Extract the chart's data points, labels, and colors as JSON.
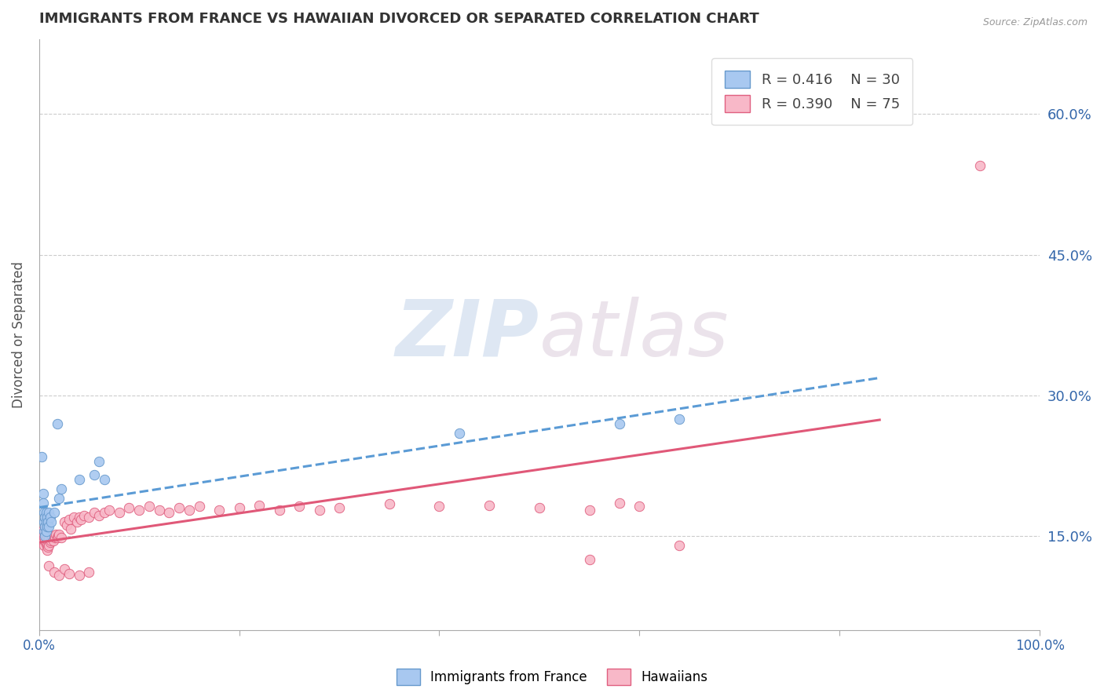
{
  "title": "IMMIGRANTS FROM FRANCE VS HAWAIIAN DIVORCED OR SEPARATED CORRELATION CHART",
  "source_text": "Source: ZipAtlas.com",
  "ylabel": "Divorced or Separated",
  "right_yticks": [
    "15.0%",
    "30.0%",
    "45.0%",
    "60.0%"
  ],
  "right_ytick_vals": [
    0.15,
    0.3,
    0.45,
    0.6
  ],
  "legend_blue_r": "R = 0.416",
  "legend_blue_n": "N = 30",
  "legend_pink_r": "R = 0.390",
  "legend_pink_n": "N = 75",
  "watermark_zip": "ZIP",
  "watermark_atlas": "atlas",
  "blue_color": "#A8C8F0",
  "pink_color": "#F8B8C8",
  "blue_edge_color": "#6699CC",
  "pink_edge_color": "#E06080",
  "blue_line_color": "#5B9BD5",
  "pink_line_color": "#E05878",
  "blue_scatter": [
    [
      0.003,
      0.235
    ],
    [
      0.004,
      0.195
    ],
    [
      0.004,
      0.185
    ],
    [
      0.005,
      0.175
    ],
    [
      0.005,
      0.165
    ],
    [
      0.005,
      0.155
    ],
    [
      0.006,
      0.17
    ],
    [
      0.006,
      0.16
    ],
    [
      0.006,
      0.15
    ],
    [
      0.007,
      0.175
    ],
    [
      0.007,
      0.165
    ],
    [
      0.007,
      0.155
    ],
    [
      0.008,
      0.17
    ],
    [
      0.008,
      0.16
    ],
    [
      0.009,
      0.165
    ],
    [
      0.01,
      0.175
    ],
    [
      0.01,
      0.16
    ],
    [
      0.011,
      0.17
    ],
    [
      0.012,
      0.165
    ],
    [
      0.015,
      0.175
    ],
    [
      0.018,
      0.27
    ],
    [
      0.02,
      0.19
    ],
    [
      0.022,
      0.2
    ],
    [
      0.04,
      0.21
    ],
    [
      0.055,
      0.215
    ],
    [
      0.06,
      0.23
    ],
    [
      0.065,
      0.21
    ],
    [
      0.42,
      0.26
    ],
    [
      0.58,
      0.27
    ],
    [
      0.64,
      0.275
    ]
  ],
  "pink_scatter": [
    [
      0.003,
      0.155
    ],
    [
      0.004,
      0.15
    ],
    [
      0.004,
      0.145
    ],
    [
      0.005,
      0.155
    ],
    [
      0.005,
      0.148
    ],
    [
      0.005,
      0.14
    ],
    [
      0.006,
      0.152
    ],
    [
      0.006,
      0.145
    ],
    [
      0.007,
      0.15
    ],
    [
      0.007,
      0.142
    ],
    [
      0.008,
      0.148
    ],
    [
      0.008,
      0.14
    ],
    [
      0.008,
      0.135
    ],
    [
      0.009,
      0.145
    ],
    [
      0.009,
      0.138
    ],
    [
      0.01,
      0.148
    ],
    [
      0.01,
      0.14
    ],
    [
      0.011,
      0.143
    ],
    [
      0.012,
      0.145
    ],
    [
      0.013,
      0.15
    ],
    [
      0.014,
      0.145
    ],
    [
      0.015,
      0.15
    ],
    [
      0.016,
      0.148
    ],
    [
      0.017,
      0.152
    ],
    [
      0.018,
      0.148
    ],
    [
      0.019,
      0.15
    ],
    [
      0.02,
      0.152
    ],
    [
      0.022,
      0.148
    ],
    [
      0.025,
      0.165
    ],
    [
      0.028,
      0.162
    ],
    [
      0.03,
      0.168
    ],
    [
      0.032,
      0.158
    ],
    [
      0.035,
      0.17
    ],
    [
      0.038,
      0.165
    ],
    [
      0.04,
      0.17
    ],
    [
      0.042,
      0.168
    ],
    [
      0.045,
      0.172
    ],
    [
      0.05,
      0.17
    ],
    [
      0.055,
      0.175
    ],
    [
      0.06,
      0.172
    ],
    [
      0.065,
      0.175
    ],
    [
      0.07,
      0.178
    ],
    [
      0.08,
      0.175
    ],
    [
      0.09,
      0.18
    ],
    [
      0.1,
      0.178
    ],
    [
      0.11,
      0.182
    ],
    [
      0.12,
      0.178
    ],
    [
      0.13,
      0.175
    ],
    [
      0.14,
      0.18
    ],
    [
      0.15,
      0.178
    ],
    [
      0.16,
      0.182
    ],
    [
      0.18,
      0.178
    ],
    [
      0.2,
      0.18
    ],
    [
      0.22,
      0.183
    ],
    [
      0.24,
      0.178
    ],
    [
      0.26,
      0.182
    ],
    [
      0.28,
      0.178
    ],
    [
      0.3,
      0.18
    ],
    [
      0.35,
      0.184
    ],
    [
      0.4,
      0.182
    ],
    [
      0.45,
      0.183
    ],
    [
      0.5,
      0.18
    ],
    [
      0.55,
      0.178
    ],
    [
      0.58,
      0.185
    ],
    [
      0.6,
      0.182
    ],
    [
      0.55,
      0.125
    ],
    [
      0.64,
      0.14
    ],
    [
      0.94,
      0.545
    ],
    [
      0.01,
      0.118
    ],
    [
      0.015,
      0.112
    ],
    [
      0.02,
      0.108
    ],
    [
      0.025,
      0.115
    ],
    [
      0.03,
      0.11
    ],
    [
      0.04,
      0.108
    ],
    [
      0.05,
      0.112
    ]
  ],
  "xlim": [
    0.0,
    1.0
  ],
  "ylim": [
    0.05,
    0.68
  ],
  "bg_color": "#FFFFFF",
  "grid_color": "#CCCCCC"
}
